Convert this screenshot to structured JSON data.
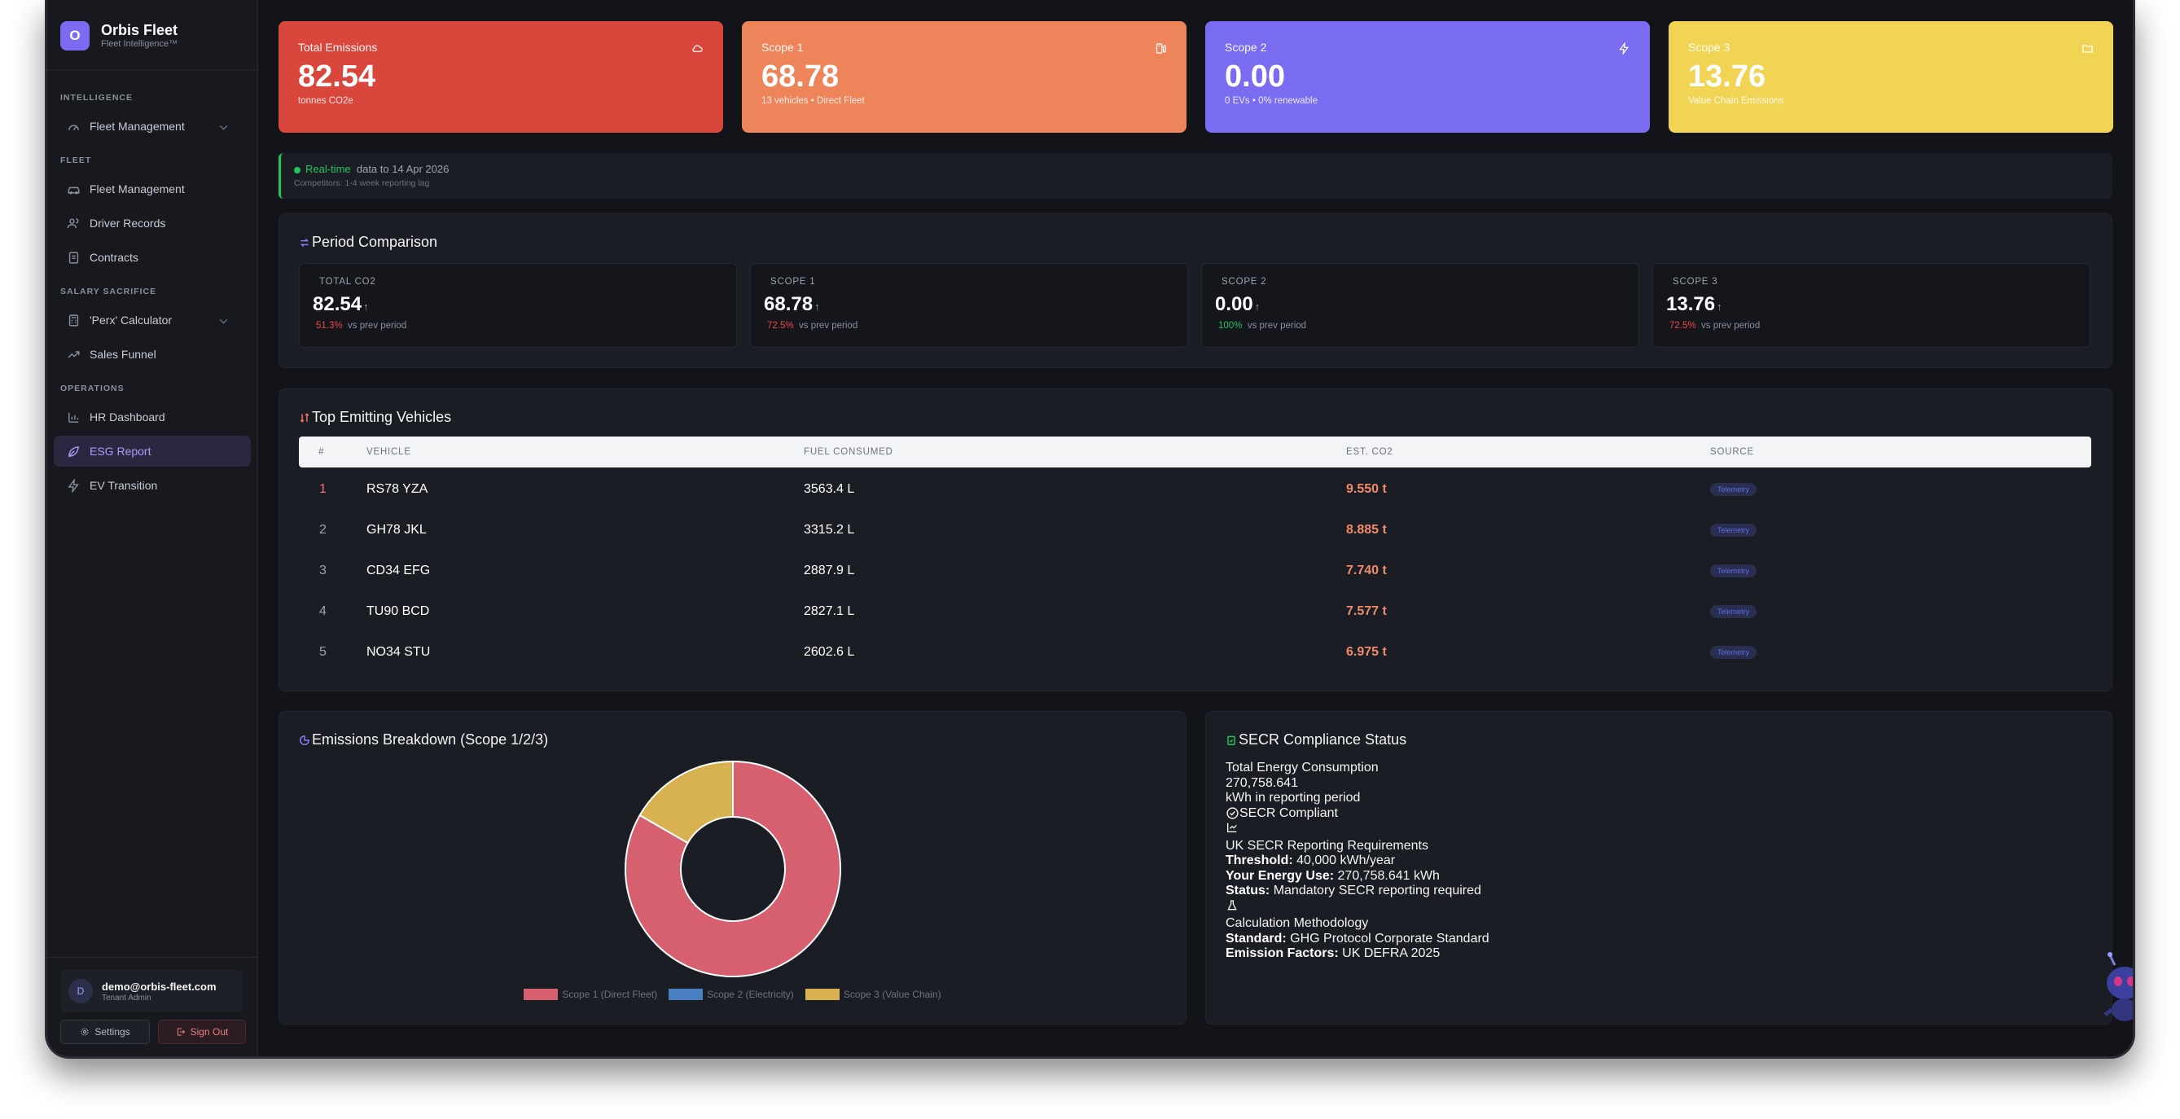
{
  "brand": {
    "logo": "O",
    "name": "Orbis Fleet",
    "sub": "Fleet Intelligence™"
  },
  "sidebar": {
    "sections": [
      {
        "label": "INTELLIGENCE"
      },
      {
        "label": "FLEET"
      },
      {
        "label": "SALARY SACRIFICE"
      },
      {
        "label": "OPERATIONS"
      }
    ],
    "items": [
      {
        "label": "Fleet Management",
        "icon": "gauge-icon",
        "expandable": true
      },
      {
        "label": "Fleet Management",
        "icon": "car-icon"
      },
      {
        "label": "Driver Records",
        "icon": "users-icon"
      },
      {
        "label": "Contracts",
        "icon": "document-icon"
      },
      {
        "label": "'Perx' Calculator",
        "icon": "calculator-icon",
        "expandable": true
      },
      {
        "label": "Sales Funnel",
        "icon": "trending-up-icon"
      },
      {
        "label": "HR Dashboard",
        "icon": "bar-chart-icon"
      },
      {
        "label": "ESG Report",
        "icon": "leaf-icon",
        "active": true
      },
      {
        "label": "EV Transition",
        "icon": "bolt-icon"
      }
    ],
    "user": {
      "avatar": "D",
      "email": "demo@orbis-fleet.com",
      "role": "Tenant Admin"
    },
    "settings_label": "Settings",
    "signout_label": "Sign Out"
  },
  "kpis": [
    {
      "label": "Total Emissions",
      "value": "82.54",
      "sub": "tonnes CO2e",
      "color": "#d9473c",
      "icon": "cloud-icon"
    },
    {
      "label": "Scope 1",
      "value": "68.78",
      "sub": "13 vehicles • Direct Fleet",
      "color": "#ed845a",
      "icon": "fuel-icon"
    },
    {
      "label": "Scope 2",
      "value": "0.00",
      "sub": "0 EVs • 0% renewable",
      "color": "#7a6cf0",
      "icon": "bolt-icon"
    },
    {
      "label": "Scope 3",
      "value": "13.76",
      "sub": "Value Chain Emissions",
      "color": "#f2d455",
      "icon": "folder-icon"
    }
  ],
  "realtime": {
    "badge": "Real-time",
    "text": "data to 14 Apr 2026",
    "note": "Competitors: 1-4 week reporting lag"
  },
  "period": {
    "title": "Period Comparison",
    "cards": [
      {
        "label": "TOTAL CO2",
        "value": "82.54",
        "arrow": "↑",
        "delta": "51.3%",
        "delta_color": "#ef4444",
        "vs": "vs prev period"
      },
      {
        "label": "SCOPE 1",
        "value": "68.78",
        "arrow": "↑",
        "delta": "72.5%",
        "delta_color": "#ef4444",
        "vs": "vs prev period"
      },
      {
        "label": "SCOPE 2",
        "value": "0.00",
        "arrow": "↑",
        "delta": "100%",
        "delta_color": "#22c55e",
        "vs": "vs prev period"
      },
      {
        "label": "SCOPE 3",
        "value": "13.76",
        "arrow": "↑",
        "delta": "72.5%",
        "delta_color": "#ef4444",
        "vs": "vs prev period"
      }
    ]
  },
  "top": {
    "title": "Top Emitting Vehicles",
    "headers": [
      "#",
      "VEHICLE",
      "FUEL CONSUMED",
      "EST. CO2",
      "SOURCE"
    ],
    "rows": [
      {
        "rank": "1",
        "vehicle": "RS78 YZA",
        "fuel": "3563.4 L",
        "co2": "9.550 t",
        "source": "Telemetry"
      },
      {
        "rank": "2",
        "vehicle": "GH78 JKL",
        "fuel": "3315.2 L",
        "co2": "8.885 t",
        "source": "Telemetry"
      },
      {
        "rank": "3",
        "vehicle": "CD34 EFG",
        "fuel": "2887.9 L",
        "co2": "7.740 t",
        "source": "Telemetry"
      },
      {
        "rank": "4",
        "vehicle": "TU90 BCD",
        "fuel": "2827.1 L",
        "co2": "7.577 t",
        "source": "Telemetry"
      },
      {
        "rank": "5",
        "vehicle": "NO34 STU",
        "fuel": "2602.6 L",
        "co2": "6.975 t",
        "source": "Telemetry"
      }
    ]
  },
  "breakdown": {
    "title": "Emissions Breakdown (Scope 1/2/3)"
  },
  "chart_data": {
    "type": "pie",
    "title": "Emissions Breakdown (Scope 1/2/3)",
    "series": [
      {
        "name": "Scope 1 (Direct Fleet)",
        "value": 68.78,
        "color": "#d6606f"
      },
      {
        "name": "Scope 2 (Electricity)",
        "value": 0.0,
        "color": "#4a7fc1"
      },
      {
        "name": "Scope 3 (Value Chain)",
        "value": 13.76,
        "color": "#d8b251"
      }
    ],
    "legend": "bottom"
  },
  "secr": {
    "title": "SECR Compliance Status",
    "total_label": "Total Energy Consumption",
    "total_value": "270,758.641",
    "total_unit": "kWh in reporting period",
    "compliant": "SECR Compliant",
    "req_title": "UK SECR Reporting Requirements",
    "threshold_k": "Threshold:",
    "threshold_v": "40,000 kWh/year",
    "use_k": "Your Energy Use:",
    "use_v": "270,758.641 kWh",
    "status_k": "Status:",
    "status_v": "Mandatory SECR reporting required",
    "method_title": "Calculation Methodology",
    "standard_k": "Standard:",
    "standard_v": "GHG Protocol Corporate Standard",
    "factors_k": "Emission Factors:",
    "factors_v": "UK DEFRA 2025"
  }
}
